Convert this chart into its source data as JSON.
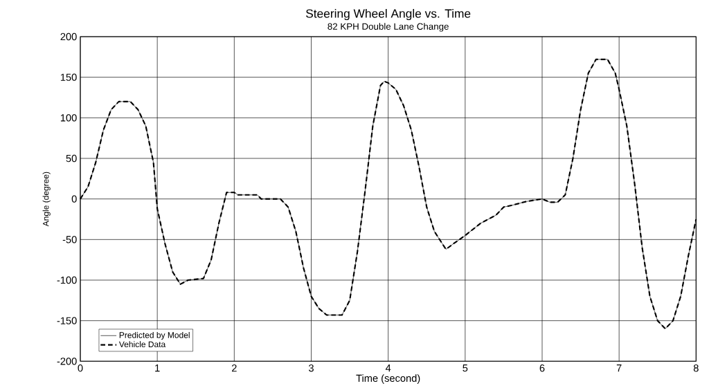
{
  "chart_data": {
    "type": "line",
    "title": "Steering Wheel Angle vs. Time",
    "subtitle": "82 KPH Double Lane Change",
    "xlabel": "Time (second)",
    "ylabel": "Angle (degree)",
    "x": [
      0,
      0.1,
      0.2,
      0.3,
      0.4,
      0.5,
      0.65,
      0.75,
      0.85,
      0.95,
      1.0,
      1.1,
      1.2,
      1.3,
      1.4,
      1.6,
      1.7,
      1.8,
      1.9,
      2.0,
      2.05,
      2.3,
      2.35,
      2.6,
      2.7,
      2.8,
      2.9,
      3.0,
      3.1,
      3.2,
      3.4,
      3.5,
      3.6,
      3.7,
      3.8,
      3.9,
      3.95,
      4.0,
      4.1,
      4.2,
      4.3,
      4.4,
      4.5,
      4.6,
      4.75,
      4.85,
      5.0,
      5.2,
      5.4,
      5.5,
      5.6,
      5.8,
      6.0,
      6.1,
      6.2,
      6.3,
      6.4,
      6.5,
      6.6,
      6.7,
      6.85,
      6.95,
      7.0,
      7.1,
      7.2,
      7.3,
      7.4,
      7.5,
      7.6,
      7.7,
      7.8,
      7.9,
      8.0
    ],
    "series": [
      {
        "name": "Predicted by Model",
        "color": "#000000",
        "line_style": "solid",
        "values": [
          0,
          15,
          45,
          85,
          110,
          120,
          120,
          110,
          90,
          45,
          -12,
          -55,
          -90,
          -105,
          -100,
          -98,
          -75,
          -30,
          8,
          8,
          5,
          5,
          0,
          0,
          -10,
          -40,
          -85,
          -120,
          -135,
          -143,
          -143,
          -125,
          -65,
          10,
          90,
          140,
          145,
          143,
          135,
          115,
          85,
          40,
          -10,
          -40,
          -62,
          -55,
          -45,
          -30,
          -20,
          -10,
          -8,
          -3,
          0,
          -4,
          -4,
          5,
          50,
          110,
          155,
          172,
          172,
          155,
          135,
          90,
          20,
          -60,
          -120,
          -150,
          -160,
          -150,
          -120,
          -70,
          -25
        ]
      },
      {
        "name": "Vehicle Data",
        "color": "#000000",
        "line_style": "dashed",
        "values": [
          0,
          15,
          45,
          85,
          110,
          120,
          120,
          110,
          90,
          45,
          -12,
          -55,
          -90,
          -105,
          -100,
          -98,
          -75,
          -30,
          8,
          8,
          5,
          5,
          0,
          0,
          -10,
          -40,
          -85,
          -120,
          -135,
          -143,
          -143,
          -125,
          -65,
          10,
          90,
          140,
          145,
          143,
          135,
          115,
          85,
          40,
          -10,
          -40,
          -62,
          -55,
          -45,
          -30,
          -20,
          -10,
          -8,
          -3,
          0,
          -4,
          -4,
          5,
          50,
          110,
          155,
          172,
          172,
          155,
          135,
          90,
          20,
          -60,
          -120,
          -150,
          -160,
          -150,
          -120,
          -70,
          -25
        ]
      }
    ],
    "xlim": [
      0,
      8
    ],
    "ylim": [
      -200,
      200
    ],
    "xticks": [
      0,
      1,
      2,
      3,
      4,
      5,
      6,
      7,
      8
    ],
    "yticks": [
      -200,
      -150,
      -100,
      -50,
      0,
      50,
      100,
      150,
      200
    ],
    "grid": true,
    "legend": "bottom left"
  }
}
